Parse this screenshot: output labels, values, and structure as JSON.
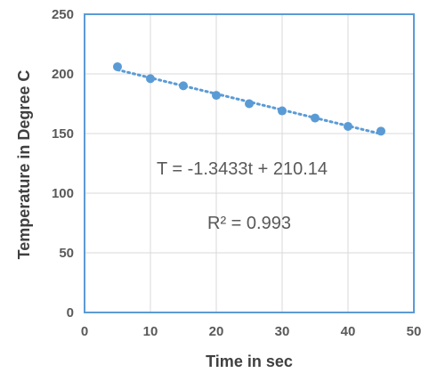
{
  "chart_data": {
    "type": "scatter",
    "title": "",
    "xlabel": "Time in sec",
    "ylabel": "Temperature in Degree C",
    "xlim": [
      0,
      50
    ],
    "ylim": [
      0,
      250
    ],
    "x_ticks": [
      "0",
      "10",
      "20",
      "30",
      "40",
      "50"
    ],
    "y_ticks": [
      "0",
      "50",
      "100",
      "150",
      "200",
      "250"
    ],
    "grid": true,
    "legend": "none",
    "series": [
      {
        "x": [
          5,
          10,
          15,
          20,
          25,
          30,
          35,
          40,
          45
        ],
        "y": [
          206,
          196,
          190,
          182,
          175,
          169,
          163,
          156,
          152
        ]
      }
    ],
    "trendline": {
      "type": "linear",
      "slope": -1.3433,
      "intercept": 210.14,
      "style": "dotted"
    },
    "annotations": [
      "T = -1.3433t + 210.14",
      "R² = 0.993"
    ],
    "colors": {
      "marker": "#5b9bd5",
      "grid": "#d9d9d9",
      "plot_border": "#5b9bd5",
      "text": "#595959"
    }
  }
}
